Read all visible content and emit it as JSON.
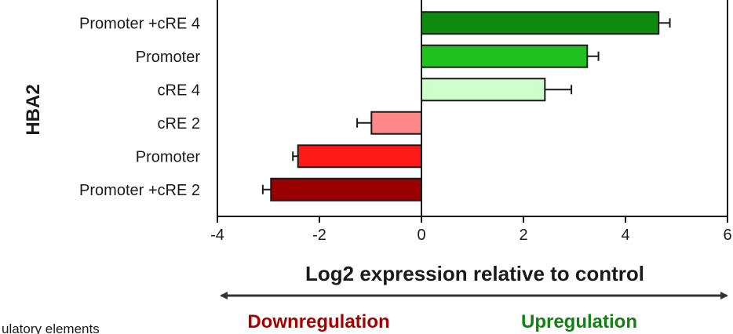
{
  "chart_data": {
    "type": "bar",
    "orientation": "horizontal",
    "ylabel": "HBA2",
    "xlabel": "Log2 expression relative to control",
    "xlim": [
      -4,
      6
    ],
    "xticks": [
      -4,
      -2,
      0,
      2,
      4,
      6
    ],
    "grid": false,
    "categories": [
      "Promoter +cRE 4",
      "Promoter",
      "cRE 4",
      "cRE 2",
      "Promoter",
      "Promoter +cRE 2"
    ],
    "values": [
      4.65,
      3.25,
      2.42,
      -0.98,
      -2.42,
      -2.95
    ],
    "errors": [
      0.22,
      0.22,
      0.52,
      0.28,
      0.1,
      0.16
    ],
    "colors": [
      "#0e8a0e",
      "#1fc01f",
      "#ccffcc",
      "#ff8888",
      "#ff1a1a",
      "#9b0000"
    ],
    "direction_labels": {
      "down": "Downregulation",
      "up": "Upregulation",
      "down_color": "#a60000",
      "up_color": "#138013"
    },
    "footnote": "ulatory elements"
  }
}
